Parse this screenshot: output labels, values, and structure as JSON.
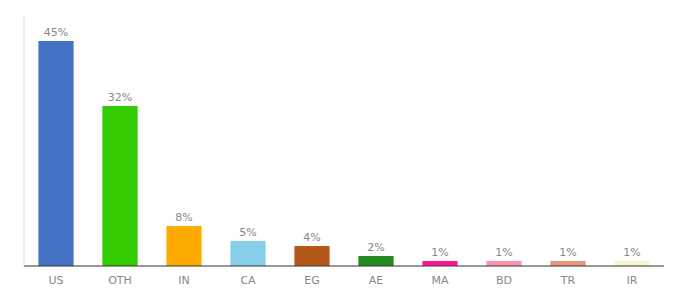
{
  "chart_data": {
    "type": "bar",
    "categories": [
      "US",
      "OTH",
      "IN",
      "CA",
      "EG",
      "AE",
      "MA",
      "BD",
      "TR",
      "IR"
    ],
    "values": [
      45,
      32,
      8,
      5,
      4,
      2,
      1,
      1,
      1,
      1
    ],
    "value_labels": [
      "45%",
      "32%",
      "8%",
      "5%",
      "4%",
      "2%",
      "1%",
      "1%",
      "1%",
      "1%"
    ],
    "colors": [
      "#4472c4",
      "#33cc00",
      "#ffaa00",
      "#87ceeb",
      "#b5591a",
      "#228b22",
      "#ff1493",
      "#ff91aa",
      "#e8967a",
      "#f5f5c8"
    ],
    "ylim": [
      0,
      50
    ],
    "data_labels": true,
    "tick_labels": "x",
    "grid": false
  }
}
